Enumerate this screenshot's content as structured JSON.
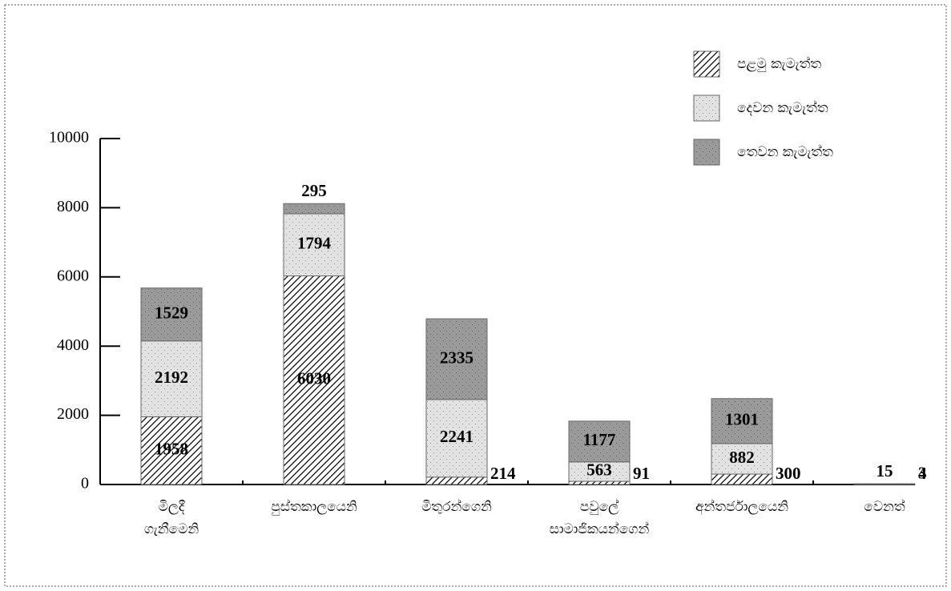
{
  "chart_data": {
    "type": "stacked_bar",
    "categories": [
      "මිලදී ගැනීමෙනි",
      "පුස්තකාලයෙනි",
      "මිතුරන්ගෙනි",
      "පවුලේ සාමාජිකයන්ගෙන්",
      "අන්තර්ජාලයෙනි",
      "වෙනත්"
    ],
    "series": [
      {
        "name": "පළමු කැමැත්ත",
        "color": "#ffffff",
        "values": [
          1958,
          6030,
          214,
          91,
          300,
          4
        ]
      },
      {
        "name": "දෙවන කැමැත්ත",
        "color": "#e2e2e2",
        "values": [
          2192,
          1794,
          2241,
          563,
          882,
          3
        ]
      },
      {
        "name": "තෙවන කැමැත්ත",
        "color": "#9a9a9a",
        "values": [
          1529,
          295,
          2335,
          1177,
          1301,
          15
        ]
      }
    ],
    "ylim": [
      0,
      10000
    ],
    "yticks": [
      0,
      2000,
      4000,
      6000,
      8000,
      10000
    ],
    "grid": false
  }
}
